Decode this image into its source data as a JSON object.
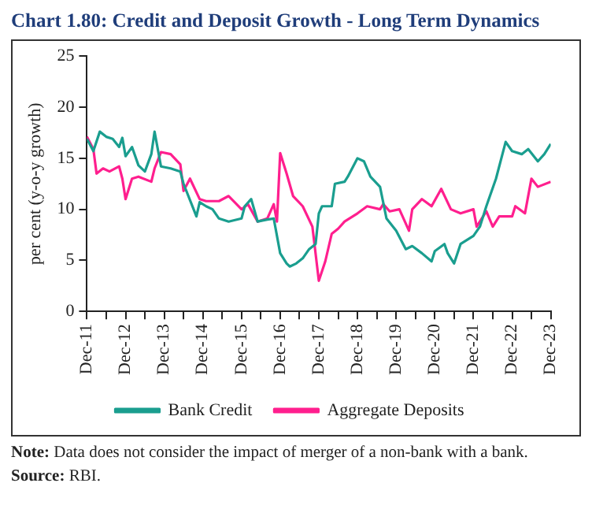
{
  "chart_data": {
    "type": "line",
    "title": "Chart 1.80: Credit and Deposit Growth - Long Term Dynamics",
    "ylabel": "per cent (y-o-y growth)",
    "ylim": [
      0,
      25
    ],
    "yticks": [
      0,
      5,
      10,
      15,
      20,
      25
    ],
    "xlim": [
      "2011-12",
      "2023-12"
    ],
    "xticks": [
      {
        "value": "2011-12",
        "label": "Dec-11"
      },
      {
        "value": "2012-06",
        "label": null
      },
      {
        "value": "2012-12",
        "label": "Dec-12"
      },
      {
        "value": "2013-06",
        "label": null
      },
      {
        "value": "2013-12",
        "label": "Dec-13"
      },
      {
        "value": "2014-06",
        "label": null
      },
      {
        "value": "2014-12",
        "label": "Dec-14"
      },
      {
        "value": "2015-06",
        "label": null
      },
      {
        "value": "2015-12",
        "label": "Dec-15"
      },
      {
        "value": "2016-06",
        "label": null
      },
      {
        "value": "2016-12",
        "label": "Dec-16"
      },
      {
        "value": "2017-06",
        "label": null
      },
      {
        "value": "2017-12",
        "label": "Dec-17"
      },
      {
        "value": "2018-06",
        "label": null
      },
      {
        "value": "2018-12",
        "label": "Dec-18"
      },
      {
        "value": "2019-06",
        "label": null
      },
      {
        "value": "2019-12",
        "label": "Dec-19"
      },
      {
        "value": "2020-06",
        "label": null
      },
      {
        "value": "2020-12",
        "label": "Dec-20"
      },
      {
        "value": "2021-06",
        "label": null
      },
      {
        "value": "2021-12",
        "label": "Dec-21"
      },
      {
        "value": "2022-06",
        "label": null
      },
      {
        "value": "2022-12",
        "label": "Dec-22"
      },
      {
        "value": "2023-06",
        "label": null
      },
      {
        "value": "2023-12",
        "label": "Dec-23"
      }
    ],
    "grid": false,
    "legend": "bottom",
    "marker": "none",
    "line_style": "solid",
    "series": [
      {
        "name": "Bank Credit",
        "color": "#1a9e8f",
        "x": [
          "2011-12",
          "2012-02",
          "2012-04",
          "2012-06",
          "2012-08",
          "2012-10",
          "2012-11",
          "2012-12",
          "2013-02",
          "2013-04",
          "2013-06",
          "2013-08",
          "2013-09",
          "2013-11",
          "2014-02",
          "2014-05",
          "2014-06",
          "2014-10",
          "2014-11",
          "2015-01",
          "2015-03",
          "2015-05",
          "2015-08",
          "2015-12",
          "2016-01",
          "2016-03",
          "2016-05",
          "2016-08",
          "2016-10",
          "2016-12",
          "2017-02",
          "2017-03",
          "2017-05",
          "2017-07",
          "2017-09",
          "2017-11",
          "2017-12",
          "2018-01",
          "2018-04",
          "2018-05",
          "2018-08",
          "2018-09",
          "2018-12",
          "2019-02",
          "2019-04",
          "2019-07",
          "2019-09",
          "2019-12",
          "2020-03",
          "2020-05",
          "2020-08",
          "2020-11",
          "2020-12",
          "2021-03",
          "2021-04",
          "2021-06",
          "2021-08",
          "2021-12",
          "2022-02",
          "2022-04",
          "2022-07",
          "2022-10",
          "2022-12",
          "2023-03",
          "2023-05",
          "2023-08",
          "2023-10",
          "2023-12"
        ],
        "values": [
          16.9,
          15.7,
          17.6,
          17.1,
          16.9,
          16.1,
          17.0,
          15.2,
          16.1,
          14.3,
          13.7,
          15.4,
          17.6,
          14.2,
          14.0,
          13.7,
          12.5,
          9.3,
          10.7,
          10.3,
          10.0,
          9.1,
          8.8,
          9.1,
          10.3,
          11.0,
          8.8,
          9.0,
          9.1,
          5.7,
          4.7,
          4.4,
          4.7,
          5.2,
          6.1,
          6.6,
          9.6,
          10.3,
          10.3,
          12.5,
          12.7,
          13.2,
          15.0,
          14.7,
          13.2,
          12.2,
          9.1,
          7.9,
          6.1,
          6.4,
          5.7,
          4.9,
          5.9,
          6.6,
          5.7,
          4.7,
          6.6,
          7.4,
          8.3,
          10.3,
          13.0,
          16.6,
          15.7,
          15.4,
          15.9,
          14.7,
          15.4,
          16.4
        ]
      },
      {
        "name": "Aggregate Deposits",
        "color": "#ff1f8e",
        "x": [
          "2011-12",
          "2012-02",
          "2012-03",
          "2012-05",
          "2012-07",
          "2012-10",
          "2012-11",
          "2012-12",
          "2013-02",
          "2013-04",
          "2013-08",
          "2013-09",
          "2013-11",
          "2014-02",
          "2014-05",
          "2014-06",
          "2014-08",
          "2014-11",
          "2015-01",
          "2015-05",
          "2015-08",
          "2015-12",
          "2016-02",
          "2016-05",
          "2016-08",
          "2016-10",
          "2016-11",
          "2016-12",
          "2017-02",
          "2017-04",
          "2017-07",
          "2017-10",
          "2017-12",
          "2018-02",
          "2018-04",
          "2018-06",
          "2018-08",
          "2018-12",
          "2019-03",
          "2019-07",
          "2019-08",
          "2019-10",
          "2020-01",
          "2020-04",
          "2020-05",
          "2020-08",
          "2020-11",
          "2021-02",
          "2021-05",
          "2021-08",
          "2021-12",
          "2022-01",
          "2022-04",
          "2022-06",
          "2022-08",
          "2022-12",
          "2023-01",
          "2023-04",
          "2023-06",
          "2023-08",
          "2023-12"
        ],
        "values": [
          17.1,
          15.9,
          13.5,
          14.0,
          13.7,
          14.2,
          13.0,
          11.0,
          13.0,
          13.2,
          12.7,
          14.0,
          15.6,
          15.4,
          14.4,
          11.8,
          13.0,
          11.0,
          10.8,
          10.8,
          11.3,
          10.0,
          10.5,
          8.8,
          9.1,
          10.5,
          8.8,
          15.5,
          13.5,
          11.3,
          10.3,
          8.3,
          3.0,
          4.9,
          7.6,
          8.1,
          8.8,
          9.6,
          10.3,
          10.0,
          10.5,
          9.8,
          10.0,
          7.9,
          10.0,
          11.0,
          10.3,
          12.0,
          10.0,
          9.6,
          10.0,
          8.3,
          9.8,
          8.3,
          9.3,
          9.3,
          10.3,
          9.6,
          13.0,
          12.2,
          12.7
        ]
      }
    ],
    "annotations": [
      "Note: Data does not consider the impact of merger of a non-bank with a bank.",
      "Source: RBI."
    ]
  }
}
